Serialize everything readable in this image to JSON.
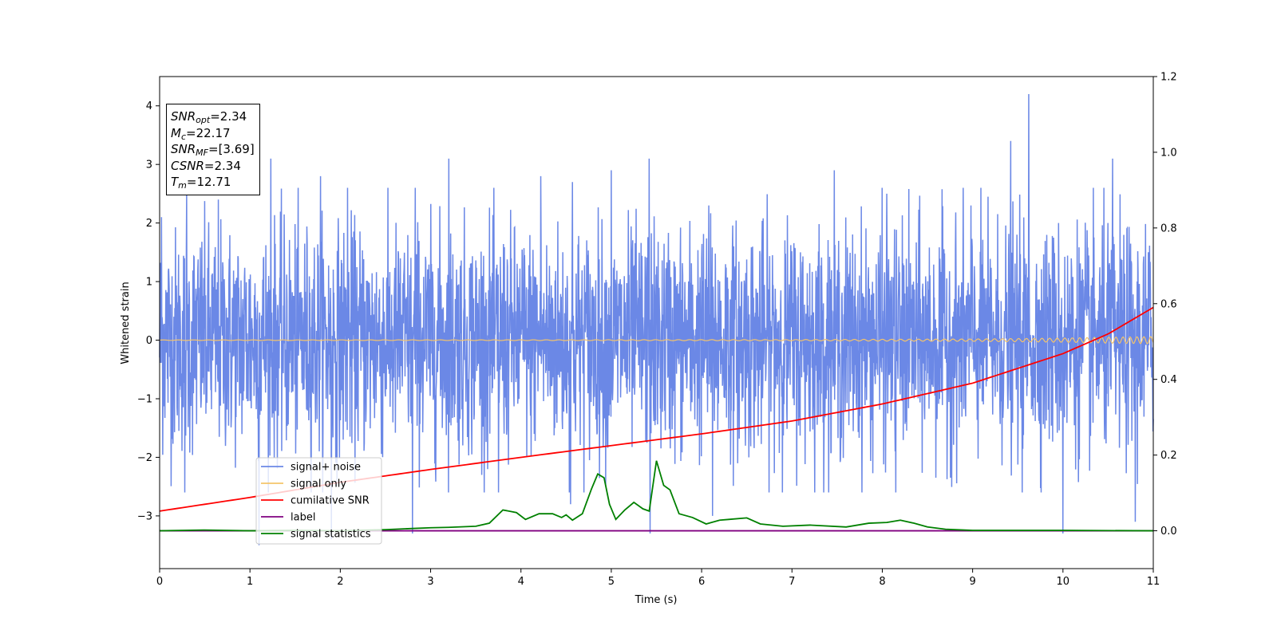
{
  "info_box": {
    "snr_opt": {
      "sym": "SNR",
      "sub": "opt",
      "value": "=2.34"
    },
    "mc": {
      "sym": "M",
      "sub": "c",
      "value": "=22.17"
    },
    "snr_mf": {
      "sym": "SNR",
      "sub": "MF",
      "value": "=[3.69]"
    },
    "csnr": {
      "sym": "CSNR",
      "value": "=2.34"
    },
    "tm": {
      "sym": "T",
      "sub": "m",
      "value": "=12.71"
    }
  },
  "colors": {
    "signal_noise": "#6b88e6",
    "signal_only": "#f5c46a",
    "cumulative_snr": "#ff0000",
    "label": "#800080",
    "signal_statistics": "#008000"
  },
  "chart_data": {
    "type": "line",
    "xlabel": "Time (s)",
    "ylabel": "Whitened strain",
    "xlim": [
      0,
      11
    ],
    "ylim": [
      -3.9,
      4.5
    ],
    "y2lim": [
      -0.1,
      1.2
    ],
    "x_ticks": [
      "0",
      "1",
      "2",
      "3",
      "4",
      "5",
      "6",
      "7",
      "8",
      "9",
      "10",
      "11"
    ],
    "y_ticks": [
      "−3",
      "−2",
      "−1",
      "0",
      "1",
      "2",
      "3",
      "4"
    ],
    "y2_ticks": [
      "0.0",
      "0.2",
      "0.4",
      "0.6",
      "0.8",
      "1.0",
      "1.2"
    ],
    "grid": false,
    "legend_position": "lower-left",
    "legend": [
      "signal+ noise",
      "signal only",
      "cumilative SNR",
      "label",
      "signal statistics"
    ],
    "series": [
      {
        "name": "signal+ noise",
        "axis": "left",
        "note": "whitened noise, amplitude range approx -3.5 to 4.2",
        "peaks": [
          [
            0.02,
            2.1
          ],
          [
            0.3,
            2.5
          ],
          [
            0.65,
            2.4
          ],
          [
            1.23,
            3.1
          ],
          [
            1.78,
            2.8
          ],
          [
            2.08,
            2.6
          ],
          [
            2.83,
            2.6
          ],
          [
            3.2,
            3.1
          ],
          [
            4.22,
            2.8
          ],
          [
            4.57,
            2.7
          ],
          [
            5.0,
            2.9
          ],
          [
            5.42,
            3.1
          ],
          [
            6.08,
            2.3
          ],
          [
            7.47,
            2.9
          ],
          [
            8.05,
            2.5
          ],
          [
            8.98,
            2.3
          ],
          [
            9.42,
            3.4
          ],
          [
            9.62,
            4.2
          ],
          [
            10.55,
            3.1
          ],
          [
            0.28,
            -2.6
          ],
          [
            1.1,
            -3.5
          ],
          [
            1.9,
            -3.4
          ],
          [
            2.8,
            -3.3
          ],
          [
            3.75,
            -2.6
          ],
          [
            4.55,
            -2.8
          ],
          [
            5.43,
            -3.3
          ],
          [
            6.12,
            -3.0
          ],
          [
            8.15,
            -2.6
          ],
          [
            9.55,
            -2.6
          ],
          [
            10.0,
            -3.3
          ],
          [
            10.8,
            -3.1
          ]
        ]
      },
      {
        "name": "signal only",
        "axis": "left",
        "note": "chirp oscillation about 0, amplitude grows toward 0.06 near t=11",
        "x": [
          0,
          4,
          7,
          9,
          10,
          10.5,
          11
        ],
        "amplitude": [
          0.004,
          0.006,
          0.01,
          0.02,
          0.035,
          0.05,
          0.06
        ]
      },
      {
        "name": "cumilative SNR",
        "axis": "right",
        "x": [
          0,
          1,
          2,
          3,
          4,
          5,
          6,
          7,
          8,
          9,
          10,
          10.5,
          11
        ],
        "values": [
          0.052,
          0.088,
          0.128,
          0.162,
          0.194,
          0.225,
          0.256,
          0.29,
          0.335,
          0.39,
          0.468,
          0.52,
          0.59
        ]
      },
      {
        "name": "label",
        "axis": "right",
        "x": [
          0,
          11
        ],
        "values": [
          0.0,
          0.0
        ]
      },
      {
        "name": "signal statistics",
        "axis": "right",
        "x": [
          0,
          0.5,
          1.0,
          1.5,
          2.0,
          2.5,
          2.8,
          3.0,
          3.2,
          3.5,
          3.65,
          3.8,
          3.95,
          4.05,
          4.2,
          4.35,
          4.45,
          4.5,
          4.57,
          4.68,
          4.78,
          4.85,
          4.92,
          4.98,
          5.05,
          5.15,
          5.25,
          5.35,
          5.42,
          5.5,
          5.58,
          5.65,
          5.75,
          5.9,
          6.05,
          6.2,
          6.3,
          6.5,
          6.65,
          6.9,
          7.2,
          7.6,
          7.85,
          8.05,
          8.2,
          8.35,
          8.5,
          8.7,
          9.0,
          10.0,
          11.0
        ],
        "values": [
          0.0,
          0.002,
          0.0,
          0.001,
          0.0,
          0.003,
          0.006,
          0.008,
          0.009,
          0.012,
          0.02,
          0.055,
          0.048,
          0.03,
          0.045,
          0.045,
          0.035,
          0.042,
          0.028,
          0.045,
          0.11,
          0.15,
          0.14,
          0.07,
          0.03,
          0.055,
          0.075,
          0.058,
          0.052,
          0.185,
          0.12,
          0.108,
          0.045,
          0.035,
          0.018,
          0.028,
          0.03,
          0.034,
          0.018,
          0.012,
          0.015,
          0.01,
          0.02,
          0.022,
          0.028,
          0.02,
          0.01,
          0.004,
          0.001,
          0.001,
          0.0
        ]
      }
    ]
  }
}
